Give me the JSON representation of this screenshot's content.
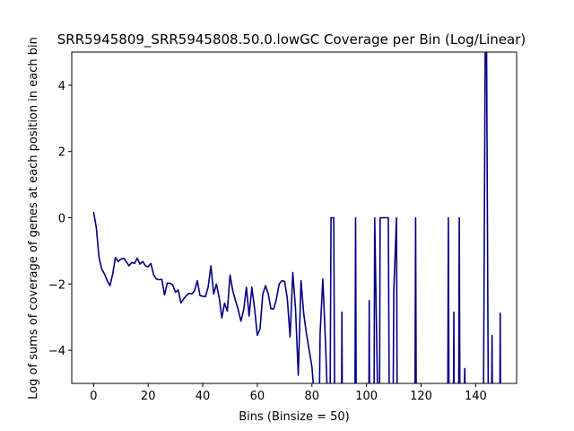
{
  "chart_data": {
    "type": "line",
    "title": "SRR5945809_SRR5945808.50.0.lowGC Coverage per Bin (Log/Linear)",
    "xlabel": "Bins (Binsize = 50)",
    "ylabel": "Log of sums of coverage of genes at each position in each bin",
    "xlim": [
      -8,
      155
    ],
    "ylim": [
      -5,
      5
    ],
    "xticks": [
      0,
      20,
      40,
      60,
      80,
      100,
      120,
      140
    ],
    "yticks": [
      -4,
      -2,
      0,
      2,
      4
    ],
    "grid": false,
    "line_color": "#000080",
    "segments": [
      [
        [
          0,
          0.18
        ],
        [
          1,
          -0.3
        ],
        [
          2,
          -1.2
        ],
        [
          3,
          -1.55
        ],
        [
          4,
          -1.7
        ],
        [
          5,
          -1.9
        ],
        [
          6,
          -2.05
        ],
        [
          7,
          -1.7
        ],
        [
          8,
          -1.2
        ],
        [
          9,
          -1.32
        ],
        [
          10,
          -1.25
        ],
        [
          11,
          -1.22
        ],
        [
          12,
          -1.33
        ],
        [
          13,
          -1.45
        ],
        [
          14,
          -1.35
        ],
        [
          15,
          -1.38
        ],
        [
          16,
          -1.22
        ],
        [
          17,
          -1.4
        ],
        [
          18,
          -1.32
        ],
        [
          19,
          -1.45
        ],
        [
          20,
          -1.48
        ],
        [
          21,
          -1.38
        ],
        [
          22,
          -1.72
        ],
        [
          23,
          -1.85
        ],
        [
          24,
          -1.87
        ],
        [
          25,
          -1.86
        ],
        [
          26,
          -2.33
        ],
        [
          27,
          -1.97
        ],
        [
          28,
          -1.98
        ],
        [
          29,
          -2.03
        ],
        [
          30,
          -2.25
        ],
        [
          31,
          -2.18
        ],
        [
          32,
          -2.57
        ],
        [
          33,
          -2.45
        ],
        [
          34,
          -2.35
        ],
        [
          35,
          -2.28
        ],
        [
          36,
          -2.3
        ],
        [
          37,
          -2.2
        ],
        [
          38,
          -1.9
        ],
        [
          39,
          -2.35
        ],
        [
          40,
          -2.37
        ],
        [
          41,
          -2.38
        ],
        [
          42,
          -2.08
        ],
        [
          43,
          -1.45
        ],
        [
          44,
          -2.3
        ],
        [
          45,
          -2.0
        ],
        [
          46,
          -2.4
        ],
        [
          47,
          -3.02
        ],
        [
          48,
          -2.58
        ],
        [
          49,
          -2.82
        ],
        [
          50,
          -1.73
        ],
        [
          51,
          -2.2
        ],
        [
          52,
          -2.5
        ],
        [
          53,
          -2.78
        ],
        [
          54,
          -3.12
        ],
        [
          55,
          -2.78
        ],
        [
          56,
          -2.1
        ],
        [
          57,
          -2.97
        ],
        [
          58,
          -2.1
        ],
        [
          59,
          -2.75
        ],
        [
          60,
          -3.55
        ],
        [
          61,
          -3.35
        ],
        [
          62,
          -2.3
        ],
        [
          63,
          -2.05
        ],
        [
          64,
          -2.3
        ],
        [
          65,
          -2.75
        ],
        [
          66,
          -2.75
        ],
        [
          67,
          -2.45
        ],
        [
          68,
          -2.0
        ],
        [
          69,
          -1.9
        ],
        [
          70,
          -1.92
        ],
        [
          71,
          -2.45
        ],
        [
          72,
          -3.6
        ],
        [
          73,
          -1.65
        ],
        [
          74,
          -2.75
        ],
        [
          75,
          -4.75
        ],
        [
          76,
          -1.9
        ],
        [
          77,
          -2.9
        ],
        [
          78,
          -3.5
        ],
        [
          79,
          -4.0
        ],
        [
          80,
          -4.5
        ],
        [
          80.5,
          -5.0
        ]
      ],
      [
        [
          82.8,
          -5.0
        ],
        [
          83,
          -3.5
        ],
        [
          84,
          -1.85
        ],
        [
          85,
          -3.8
        ],
        [
          85.5,
          -5.0
        ]
      ],
      [
        [
          86.7,
          -5.0
        ],
        [
          87,
          0.0
        ],
        [
          88,
          0.0
        ],
        [
          88.3,
          -5.0
        ]
      ],
      [
        [
          90.9,
          -5.0
        ],
        [
          91,
          -2.85
        ],
        [
          91.1,
          -5.0
        ]
      ],
      [
        [
          95.8,
          -5.0
        ],
        [
          96,
          0.0
        ],
        [
          96.2,
          -5.0
        ]
      ],
      [
        [
          100.9,
          -5.0
        ],
        [
          101,
          -2.5
        ],
        [
          101.1,
          -5.0
        ]
      ],
      [
        [
          102.8,
          -5.0
        ],
        [
          103,
          0.0
        ],
        [
          104,
          -5.0
        ]
      ],
      [
        [
          104.8,
          -5.0
        ],
        [
          105,
          0.0
        ],
        [
          106,
          0.0
        ],
        [
          107,
          0.0
        ],
        [
          108,
          0.0
        ],
        [
          108.3,
          -5.0
        ]
      ],
      [
        [
          109.8,
          -5.0
        ],
        [
          110,
          -2.2
        ],
        [
          111,
          0.0
        ],
        [
          111.2,
          -5.0
        ]
      ],
      [
        [
          117.8,
          -5.0
        ],
        [
          118,
          0.0
        ],
        [
          118.2,
          -5.0
        ]
      ],
      [
        [
          129.8,
          -5.0
        ],
        [
          130,
          0.0
        ],
        [
          130.2,
          -5.0
        ]
      ],
      [
        [
          131.9,
          -5.0
        ],
        [
          132,
          -2.85
        ],
        [
          132.1,
          -5.0
        ]
      ],
      [
        [
          133.8,
          -5.0
        ],
        [
          134,
          0.0
        ],
        [
          134.2,
          -5.0
        ]
      ],
      [
        [
          135.9,
          -5.0
        ],
        [
          136,
          -4.55
        ],
        [
          136.1,
          -5.0
        ]
      ],
      [
        [
          142.9,
          -5.0
        ],
        [
          143.5,
          5.0
        ],
        [
          144,
          5.0
        ],
        [
          144.6,
          -5.0
        ]
      ],
      [
        [
          145.9,
          -5.0
        ],
        [
          146,
          -3.55
        ],
        [
          146.1,
          -5.0
        ]
      ],
      [
        [
          148.9,
          -5.0
        ],
        [
          149,
          -2.88
        ],
        [
          149.1,
          -5.0
        ]
      ]
    ]
  }
}
